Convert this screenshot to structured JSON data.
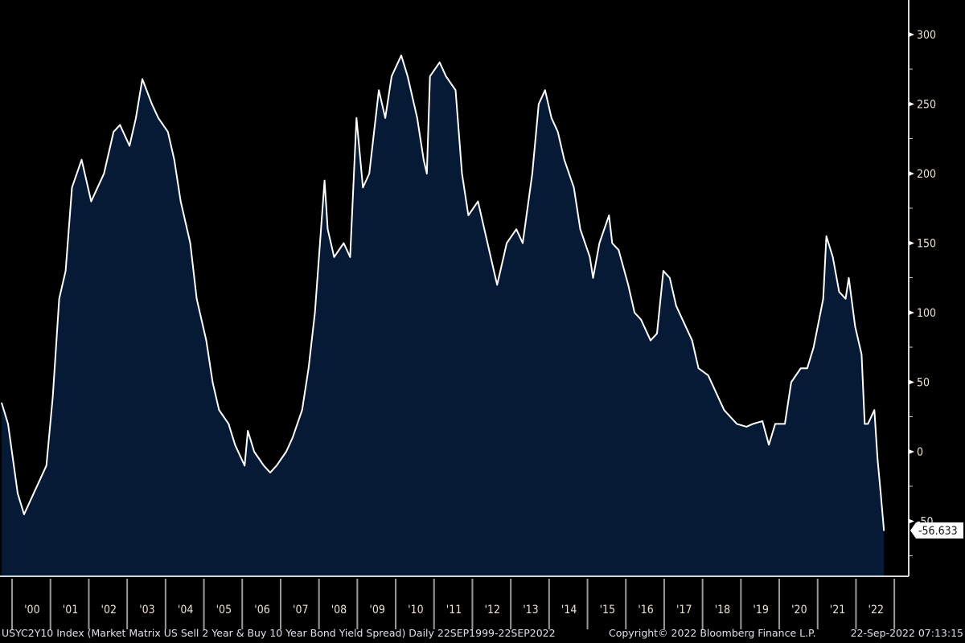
{
  "chart_data": {
    "type": "area",
    "ylim": [
      -90,
      330
    ],
    "xlim": [
      "1999-09-22",
      "2022-09-22"
    ],
    "y_ticks": [
      -50,
      0,
      50,
      100,
      150,
      200,
      250,
      300
    ],
    "y_tick_labels": [
      "-50",
      "0",
      "50",
      "100",
      "150",
      "200",
      "250",
      "300"
    ],
    "x_tick_labels": [
      "'00",
      "'01",
      "'02",
      "'03",
      "'04",
      "'05",
      "'06",
      "'07",
      "'08",
      "'09",
      "'10",
      "'11",
      "'12",
      "'13",
      "'14",
      "'15",
      "'16",
      "'17",
      "'18",
      "'19",
      "'20",
      "'21",
      "'22"
    ],
    "y_axis_side": "right",
    "grid": false,
    "last_value_label": "-56.633",
    "colors": {
      "background": "#000000",
      "fill": "#061a36",
      "line": "#ffffff",
      "axis": "#d8d8d8"
    },
    "series": [
      {
        "x": [
          "1999-09",
          "1999-11",
          "2000-02",
          "2000-04",
          "2000-06",
          "2000-09",
          "2000-11",
          "2001-01",
          "2001-03",
          "2001-05",
          "2001-07",
          "2001-10",
          "2002-01",
          "2002-03",
          "2002-05",
          "2002-08",
          "2002-10",
          "2003-01",
          "2003-03",
          "2003-05",
          "2003-08",
          "2003-10",
          "2004-01",
          "2004-03",
          "2004-05",
          "2004-08",
          "2004-10",
          "2005-01",
          "2005-03",
          "2005-05",
          "2005-08",
          "2005-10",
          "2006-01",
          "2006-02",
          "2006-04",
          "2006-07",
          "2006-09",
          "2006-11",
          "2007-02",
          "2007-04",
          "2007-07",
          "2007-09",
          "2007-11",
          "2008-02",
          "2008-03",
          "2008-05",
          "2008-08",
          "2008-10",
          "2008-12",
          "2009-02",
          "2009-04",
          "2009-07",
          "2009-09",
          "2009-11",
          "2010-02",
          "2010-04",
          "2010-07",
          "2010-09",
          "2010-10",
          "2010-11",
          "2011-02",
          "2011-04",
          "2011-07",
          "2011-09",
          "2011-11",
          "2012-02",
          "2012-04",
          "2012-07",
          "2012-08",
          "2012-10",
          "2012-11",
          "2013-02",
          "2013-04",
          "2013-07",
          "2013-09",
          "2013-11",
          "2014-01",
          "2014-03",
          "2014-05",
          "2014-08",
          "2014-10",
          "2015-01",
          "2015-02",
          "2015-04",
          "2015-07",
          "2015-08",
          "2015-10",
          "2016-01",
          "2016-03",
          "2016-05",
          "2016-08",
          "2016-10",
          "2016-12",
          "2017-02",
          "2017-04",
          "2017-07",
          "2017-09",
          "2017-11",
          "2018-02",
          "2018-04",
          "2018-07",
          "2018-09",
          "2018-11",
          "2019-02",
          "2019-04",
          "2019-07",
          "2019-09",
          "2019-11",
          "2020-02",
          "2020-04",
          "2020-07",
          "2020-09",
          "2020-11",
          "2021-02",
          "2021-03",
          "2021-05",
          "2021-07",
          "2021-09",
          "2021-10",
          "2021-12",
          "2022-02",
          "2022-03",
          "2022-04",
          "2022-06",
          "2022-07",
          "2022-08",
          "2022-09"
        ],
        "values": [
          35,
          20,
          -30,
          -45,
          -35,
          -20,
          -10,
          40,
          110,
          130,
          190,
          210,
          180,
          190,
          200,
          230,
          235,
          220,
          240,
          268,
          250,
          240,
          230,
          210,
          180,
          150,
          110,
          80,
          50,
          30,
          20,
          5,
          -10,
          15,
          0,
          -10,
          -15,
          -10,
          0,
          10,
          30,
          60,
          100,
          195,
          160,
          140,
          150,
          140,
          240,
          190,
          200,
          260,
          240,
          270,
          285,
          270,
          240,
          210,
          200,
          270,
          280,
          270,
          260,
          200,
          170,
          180,
          160,
          130,
          120,
          140,
          150,
          160,
          150,
          200,
          250,
          260,
          240,
          230,
          210,
          190,
          160,
          140,
          125,
          150,
          170,
          150,
          145,
          120,
          100,
          95,
          80,
          85,
          130,
          125,
          105,
          90,
          80,
          60,
          55,
          45,
          30,
          25,
          20,
          18,
          20,
          22,
          5,
          20,
          20,
          50,
          60,
          60,
          75,
          110,
          155,
          140,
          115,
          110,
          125,
          90,
          70,
          20,
          20,
          30,
          -5,
          -30,
          -56.633
        ]
      }
    ]
  },
  "footer": {
    "description": "USYC2Y10 Index (Market Matrix US Sell 2 Year & Buy 10 Year Bond Yield Spread)  Daily 22SEP1999-22SEP2022",
    "copyright": "Copyright© 2022 Bloomberg Finance L.P.",
    "timestamp": "22-Sep-2022 07:13:15"
  }
}
